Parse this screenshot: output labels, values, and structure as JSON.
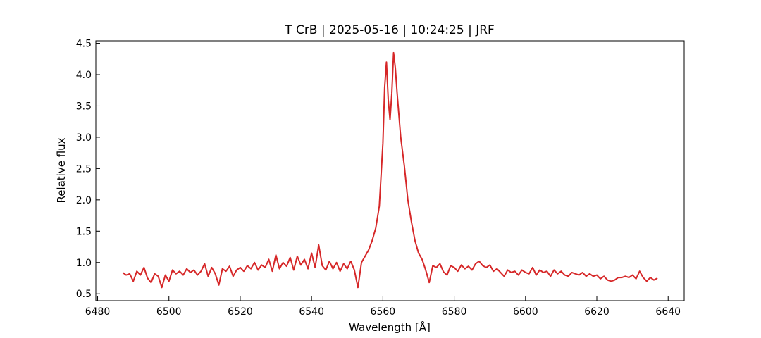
{
  "chart_data": {
    "type": "line",
    "title": "T CrB | 2025-05-16 | 10:24:25 | JRF",
    "xlabel": "Wavelength [Å]",
    "ylabel": "Relative flux",
    "xlim": [
      6479.5,
      6644.5
    ],
    "ylim": [
      0.39,
      4.54
    ],
    "xticks": [
      6480,
      6500,
      6520,
      6540,
      6560,
      6580,
      6600,
      6620,
      6640
    ],
    "yticks": [
      {
        "value": 0.5,
        "label": "0.5"
      },
      {
        "value": 1.0,
        "label": "1.0"
      },
      {
        "value": 1.5,
        "label": "1.5"
      },
      {
        "value": 2.0,
        "label": "2.0"
      },
      {
        "value": 2.5,
        "label": "2.5"
      },
      {
        "value": 3.0,
        "label": "3.0"
      },
      {
        "value": 3.5,
        "label": "3.5"
      },
      {
        "value": 4.0,
        "label": "4.0"
      },
      {
        "value": 4.5,
        "label": "4.5"
      }
    ],
    "color": "#d62728",
    "grid": false,
    "x": [
      6487,
      6488,
      6489,
      6490,
      6491,
      6492,
      6493,
      6494,
      6495,
      6496,
      6497,
      6498,
      6499,
      6500,
      6501,
      6502,
      6503,
      6504,
      6505,
      6506,
      6507,
      6508,
      6509,
      6510,
      6511,
      6512,
      6513,
      6514,
      6515,
      6516,
      6517,
      6518,
      6519,
      6520,
      6521,
      6522,
      6523,
      6524,
      6525,
      6526,
      6527,
      6528,
      6529,
      6530,
      6531,
      6532,
      6533,
      6534,
      6535,
      6536,
      6537,
      6538,
      6539,
      6540,
      6541,
      6542,
      6543,
      6544,
      6545,
      6546,
      6547,
      6548,
      6549,
      6550,
      6551,
      6552,
      6553,
      6554,
      6555,
      6556,
      6557,
      6558,
      6559,
      6560,
      6560.5,
      6561,
      6561.5,
      6562,
      6562.5,
      6563,
      6563.5,
      6564,
      6565,
      6566,
      6567,
      6568,
      6569,
      6570,
      6571,
      6572,
      6573,
      6574,
      6575,
      6576,
      6577,
      6578,
      6579,
      6580,
      6581,
      6582,
      6583,
      6584,
      6585,
      6586,
      6587,
      6588,
      6589,
      6590,
      6591,
      6592,
      6593,
      6594,
      6595,
      6596,
      6597,
      6598,
      6599,
      6600,
      6601,
      6602,
      6603,
      6604,
      6605,
      6606,
      6607,
      6608,
      6609,
      6610,
      6611,
      6612,
      6613,
      6614,
      6615,
      6616,
      6617,
      6618,
      6619,
      6620,
      6621,
      6622,
      6623,
      6624,
      6625,
      6626,
      6627,
      6628,
      6629,
      6630,
      6631,
      6632,
      6633,
      6634,
      6635,
      6636,
      6637
    ],
    "values": [
      0.84,
      0.8,
      0.82,
      0.7,
      0.86,
      0.8,
      0.92,
      0.75,
      0.68,
      0.82,
      0.78,
      0.6,
      0.8,
      0.7,
      0.88,
      0.82,
      0.86,
      0.8,
      0.9,
      0.84,
      0.88,
      0.8,
      0.86,
      0.98,
      0.78,
      0.92,
      0.82,
      0.64,
      0.9,
      0.86,
      0.94,
      0.78,
      0.88,
      0.92,
      0.86,
      0.95,
      0.9,
      1.0,
      0.88,
      0.96,
      0.92,
      1.05,
      0.86,
      1.12,
      0.9,
      1.0,
      0.94,
      1.08,
      0.88,
      1.1,
      0.96,
      1.05,
      0.9,
      1.15,
      0.92,
      1.28,
      0.95,
      0.88,
      1.02,
      0.9,
      1.0,
      0.86,
      0.98,
      0.9,
      1.02,
      0.88,
      0.6,
      1.0,
      1.1,
      1.2,
      1.35,
      1.55,
      1.9,
      2.9,
      3.8,
      4.2,
      3.6,
      3.28,
      3.7,
      4.35,
      4.1,
      3.7,
      3.0,
      2.55,
      2.0,
      1.65,
      1.35,
      1.15,
      1.05,
      0.88,
      0.68,
      0.95,
      0.92,
      0.98,
      0.85,
      0.8,
      0.95,
      0.92,
      0.86,
      0.96,
      0.9,
      0.94,
      0.88,
      0.98,
      1.02,
      0.95,
      0.92,
      0.96,
      0.86,
      0.9,
      0.84,
      0.78,
      0.88,
      0.84,
      0.86,
      0.8,
      0.88,
      0.84,
      0.82,
      0.92,
      0.8,
      0.88,
      0.84,
      0.86,
      0.78,
      0.88,
      0.82,
      0.86,
      0.8,
      0.78,
      0.84,
      0.82,
      0.8,
      0.84,
      0.78,
      0.82,
      0.78,
      0.8,
      0.74,
      0.78,
      0.72,
      0.7,
      0.72,
      0.76,
      0.76,
      0.78,
      0.76,
      0.8,
      0.74,
      0.86,
      0.76,
      0.7,
      0.76,
      0.72,
      0.75
    ]
  }
}
